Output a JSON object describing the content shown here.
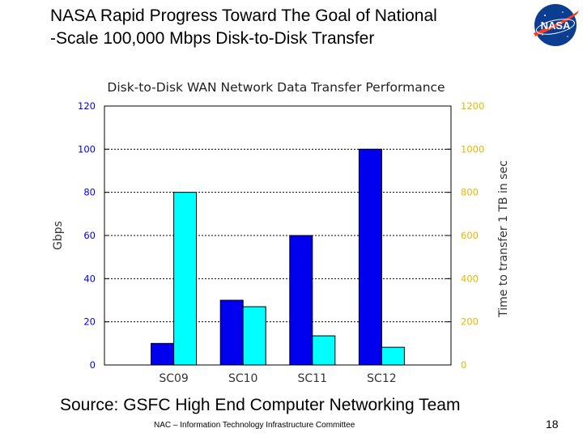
{
  "slide": {
    "title_line1": "NASA Rapid Progress Toward The Goal of National",
    "title_line2": "-Scale 100,000 Mbps Disk-to-Disk Transfer",
    "logo_text": "NASA",
    "source": "Source: GSFC High End Computer Networking Team",
    "footer": "NAC – Information Technology Infrastructure Committee",
    "page_number": "18"
  },
  "chart_data": {
    "type": "bar",
    "title": "Disk-to-Disk WAN Network Data Transfer Performance",
    "categories": [
      "SC09",
      "SC10",
      "SC11",
      "SC12"
    ],
    "series": [
      {
        "axis": "left",
        "color": "#0000ee",
        "values": [
          10,
          30,
          60,
          100
        ]
      },
      {
        "axis": "right",
        "color": "#00ffff",
        "values": [
          800,
          270,
          135,
          82
        ]
      }
    ],
    "ylabel": "Gbps",
    "ylim": [
      0,
      120
    ],
    "yticks": [
      0,
      20,
      40,
      60,
      80,
      100,
      120
    ],
    "y2label": "Time to transfer 1 TB in sec",
    "y2lim": [
      0,
      1200
    ],
    "y2ticks": [
      0,
      200,
      400,
      600,
      800,
      1000,
      1200
    ],
    "grid": true,
    "left_tick_color": "#0000ee",
    "right_tick_color": "#e6b800"
  }
}
